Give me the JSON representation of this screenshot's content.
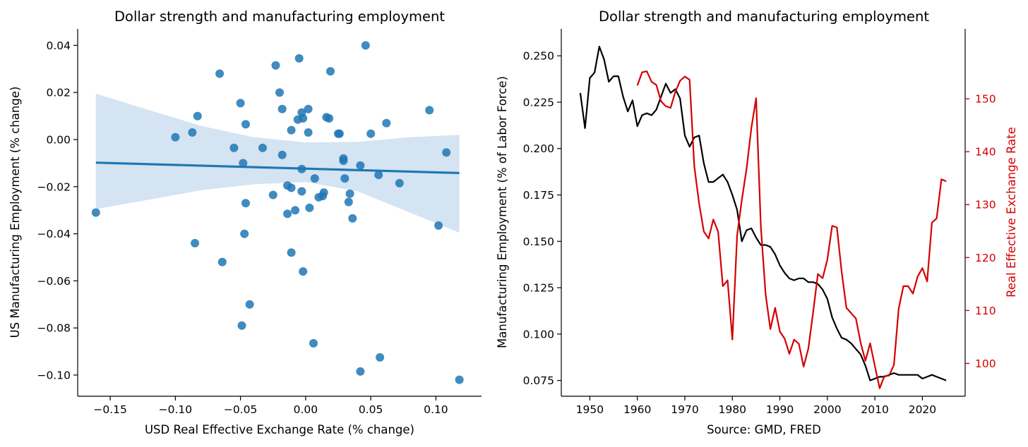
{
  "colors": {
    "scatter": "#1f77b4",
    "band": "#c6dbef",
    "employment_line": "#000000",
    "rate_line": "#d40000"
  },
  "chart_data": [
    {
      "type": "scatter",
      "title": "Dollar strength and manufacturing employment",
      "xlabel": "USD Real Effective Exchange Rate (% change)",
      "ylabel": "US Manufacturing Employment (% change)",
      "xlim": [
        -0.175,
        0.135
      ],
      "ylim": [
        -0.109,
        0.047
      ],
      "xticks": [
        -0.15,
        -0.1,
        -0.05,
        0.0,
        0.05,
        0.1
      ],
      "xtick_labels": [
        "−0.15",
        "−0.10",
        "−0.05",
        "0.00",
        "0.05",
        "0.10"
      ],
      "yticks": [
        0.04,
        0.02,
        0.0,
        -0.02,
        -0.04,
        -0.06,
        -0.08,
        -0.1
      ],
      "ytick_labels": [
        "0.04",
        "0.02",
        "0.00",
        "−0.02",
        "−0.04",
        "−0.06",
        "−0.08",
        "−0.10"
      ],
      "points": [
        [
          -0.161,
          -0.031
        ],
        [
          -0.1,
          0.001
        ],
        [
          -0.087,
          0.003
        ],
        [
          -0.083,
          0.01
        ],
        [
          -0.085,
          -0.044
        ],
        [
          -0.066,
          0.028
        ],
        [
          -0.064,
          -0.052
        ],
        [
          -0.055,
          -0.0035
        ],
        [
          -0.05,
          0.0155
        ],
        [
          -0.048,
          -0.01
        ],
        [
          -0.046,
          0.0065
        ],
        [
          -0.046,
          -0.027
        ],
        [
          -0.047,
          -0.04
        ],
        [
          -0.049,
          -0.079
        ],
        [
          -0.043,
          -0.07
        ],
        [
          -0.033,
          -0.0035
        ],
        [
          -0.025,
          -0.0235
        ],
        [
          -0.023,
          0.0315
        ],
        [
          -0.02,
          0.02
        ],
        [
          -0.018,
          0.013
        ],
        [
          -0.018,
          -0.0065
        ],
        [
          -0.014,
          -0.0195
        ],
        [
          -0.014,
          -0.0315
        ],
        [
          -0.011,
          0.004
        ],
        [
          -0.011,
          -0.0205
        ],
        [
          -0.011,
          -0.048
        ],
        [
          -0.008,
          -0.03
        ],
        [
          -0.006,
          0.0085
        ],
        [
          -0.005,
          0.0345
        ],
        [
          -0.003,
          0.0115
        ],
        [
          -0.003,
          -0.0125
        ],
        [
          -0.002,
          0.009
        ],
        [
          -0.003,
          -0.022
        ],
        [
          -0.002,
          -0.056
        ],
        [
          0.002,
          0.003
        ],
        [
          0.002,
          0.013
        ],
        [
          0.003,
          -0.029
        ],
        [
          0.007,
          -0.0165
        ],
        [
          0.006,
          -0.0865
        ],
        [
          0.01,
          -0.0245
        ],
        [
          0.013,
          -0.024
        ],
        [
          0.014,
          -0.0225
        ],
        [
          0.016,
          0.0095
        ],
        [
          0.018,
          0.009
        ],
        [
          0.019,
          0.029
        ],
        [
          0.025,
          0.0025
        ],
        [
          0.026,
          0.0025
        ],
        [
          0.029,
          -0.008
        ],
        [
          0.029,
          -0.009
        ],
        [
          0.03,
          -0.0165
        ],
        [
          0.033,
          -0.0265
        ],
        [
          0.034,
          -0.023
        ],
        [
          0.036,
          -0.0335
        ],
        [
          0.042,
          -0.011
        ],
        [
          0.046,
          0.04
        ],
        [
          0.05,
          0.0025
        ],
        [
          0.056,
          -0.015
        ],
        [
          0.057,
          -0.0925
        ],
        [
          0.042,
          -0.0985
        ],
        [
          0.062,
          0.007
        ],
        [
          0.072,
          -0.0185
        ],
        [
          0.095,
          0.0125
        ],
        [
          0.102,
          -0.0365
        ],
        [
          0.108,
          -0.0055
        ],
        [
          0.118,
          -0.102
        ]
      ],
      "fit": {
        "x": [
          -0.161,
          0.118
        ],
        "y": [
          -0.0098,
          -0.0142
        ]
      },
      "band": {
        "x": [
          -0.161,
          -0.12,
          -0.08,
          -0.04,
          0.0,
          0.04,
          0.08,
          0.118
        ],
        "upper": [
          0.0195,
          0.0125,
          0.0058,
          0.001,
          -0.0012,
          -0.001,
          0.001,
          0.002
        ],
        "lower": [
          -0.0295,
          -0.0255,
          -0.0215,
          -0.019,
          -0.018,
          -0.022,
          -0.031,
          -0.0395
        ]
      }
    },
    {
      "type": "line",
      "title": "Dollar strength and manufacturing employment",
      "xlabel": "Source: GMD, FRED",
      "ylabel": "Manufacturing Employment (% of Labor Force)",
      "ylabel_right": "Real Effective Exchange Rate",
      "xlim": [
        1944,
        2029
      ],
      "ylim": [
        0.0665,
        0.2645
      ],
      "ylim_right": [
        93.8,
        163.2
      ],
      "xticks": [
        1950,
        1960,
        1970,
        1980,
        1990,
        2000,
        2010,
        2020
      ],
      "xtick_labels": [
        "1950",
        "1960",
        "1970",
        "1980",
        "1990",
        "2000",
        "2010",
        "2020"
      ],
      "yticks": [
        0.25,
        0.225,
        0.2,
        0.175,
        0.15,
        0.125,
        0.1,
        0.075
      ],
      "ytick_labels": [
        "0.250",
        "0.225",
        "0.200",
        "0.175",
        "0.150",
        "0.125",
        "0.100",
        "0.075"
      ],
      "yticks_right": [
        150,
        140,
        130,
        120,
        110,
        100
      ],
      "ytick_labels_right": [
        "150",
        "140",
        "130",
        "120",
        "110",
        "100"
      ],
      "series": [
        {
          "axis": "left",
          "x": [
            1948,
            1949,
            1950,
            1951,
            1952,
            1953,
            1954,
            1955,
            1956,
            1957,
            1958,
            1959,
            1960,
            1961,
            1962,
            1963,
            1964,
            1965,
            1966,
            1967,
            1968,
            1969,
            1970,
            1971,
            1972,
            1973,
            1974,
            1975,
            1976,
            1977,
            1978,
            1979,
            1980,
            1981,
            1982,
            1983,
            1984,
            1985,
            1986,
            1987,
            1988,
            1989,
            1990,
            1991,
            1992,
            1993,
            1994,
            1995,
            1996,
            1997,
            1998,
            1999,
            2000,
            2001,
            2002,
            2003,
            2004,
            2005,
            2006,
            2007,
            2008,
            2009,
            2010,
            2011,
            2012,
            2013,
            2014,
            2015,
            2016,
            2017,
            2018,
            2019,
            2020,
            2021,
            2022,
            2023,
            2024,
            2025
          ],
          "y": [
            0.23,
            0.211,
            0.238,
            0.241,
            0.255,
            0.248,
            0.236,
            0.239,
            0.239,
            0.228,
            0.22,
            0.226,
            0.212,
            0.218,
            0.219,
            0.218,
            0.221,
            0.228,
            0.235,
            0.23,
            0.232,
            0.227,
            0.207,
            0.201,
            0.206,
            0.207,
            0.192,
            0.182,
            0.182,
            0.184,
            0.186,
            0.182,
            0.175,
            0.167,
            0.15,
            0.156,
            0.157,
            0.152,
            0.148,
            0.148,
            0.147,
            0.143,
            0.137,
            0.133,
            0.13,
            0.129,
            0.13,
            0.13,
            0.128,
            0.128,
            0.127,
            0.124,
            0.119,
            0.109,
            0.103,
            0.098,
            0.097,
            0.095,
            0.092,
            0.089,
            0.083,
            0.075,
            0.076,
            0.077,
            0.077,
            0.078,
            0.079,
            0.078,
            0.078,
            0.078,
            0.078,
            0.078,
            0.076,
            0.077,
            0.078,
            0.077,
            0.076,
            0.075
          ]
        },
        {
          "axis": "right",
          "x": [
            1960,
            1961,
            1962,
            1963,
            1964,
            1965,
            1966,
            1967,
            1968,
            1969,
            1970,
            1971,
            1972,
            1973,
            1974,
            1975,
            1976,
            1977,
            1978,
            1979,
            1980,
            1981,
            1982,
            1983,
            1984,
            1985,
            1986,
            1987,
            1988,
            1989,
            1990,
            1991,
            1992,
            1993,
            1994,
            1995,
            1996,
            1997,
            1998,
            1999,
            2000,
            2001,
            2002,
            2003,
            2004,
            2005,
            2006,
            2007,
            2008,
            2009,
            2010,
            2011,
            2012,
            2013,
            2014,
            2015,
            2016,
            2017,
            2018,
            2019,
            2020,
            2021,
            2022,
            2023,
            2024,
            2025
          ],
          "y": [
            152.5,
            155.0,
            155.2,
            153.2,
            152.6,
            149.5,
            148.6,
            148.3,
            151.3,
            153.4,
            154.2,
            153.6,
            137.2,
            130.2,
            124.9,
            123.6,
            127.2,
            124.9,
            114.6,
            115.7,
            104.5,
            124.2,
            130.9,
            136.8,
            144.5,
            150.1,
            125.9,
            113.0,
            106.5,
            110.5,
            106.0,
            104.7,
            101.8,
            104.5,
            103.7,
            99.4,
            102.8,
            109.7,
            116.9,
            116.1,
            119.6,
            126.0,
            125.7,
            117.4,
            110.5,
            109.5,
            108.5,
            103.9,
            100.5,
            103.8,
            99.5,
            95.3,
            97.6,
            97.7,
            99.7,
            110.3,
            114.6,
            114.6,
            113.2,
            116.4,
            118.0,
            115.5,
            126.6,
            127.4,
            134.8,
            134.4
          ]
        }
      ]
    }
  ]
}
